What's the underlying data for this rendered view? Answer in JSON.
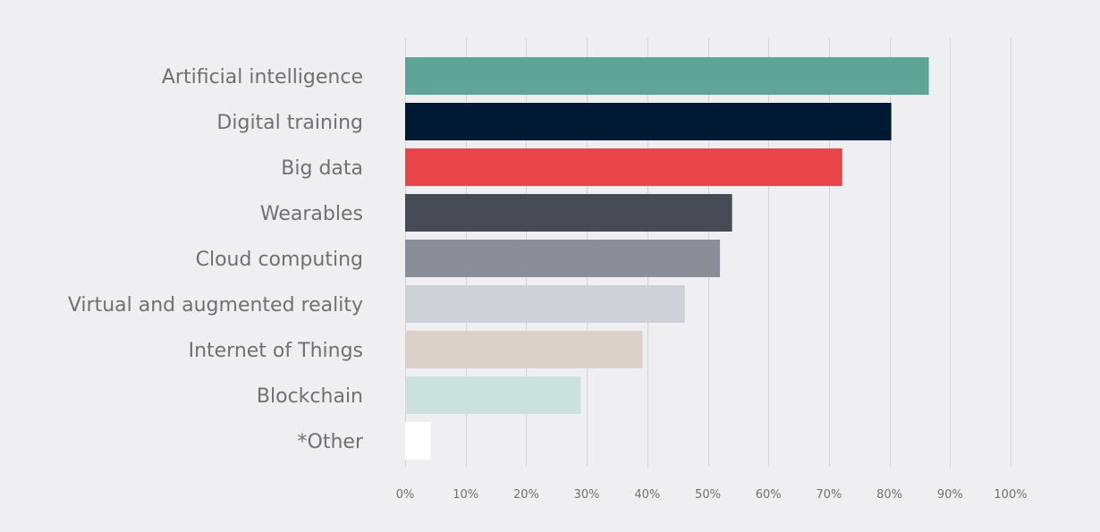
{
  "chart_data": {
    "type": "bar",
    "orientation": "horizontal",
    "title": "",
    "xlabel": "",
    "ylabel": "",
    "xlim": [
      0,
      100
    ],
    "x_ticks": [
      "0%",
      "10%",
      "20%",
      "30%",
      "40%",
      "50%",
      "60%",
      "70%",
      "80%",
      "90%",
      "100%"
    ],
    "grid": true,
    "categories": [
      "Artificial intelligence",
      "Digital training",
      "Big data",
      "Wearables",
      "Cloud computing",
      "Virtual and augmented reality",
      "Internet of Things",
      "Blockchain",
      "*Other"
    ],
    "values": [
      86.5,
      80.3,
      72.2,
      54.0,
      52.0,
      46.2,
      39.2,
      29.0,
      4.2
    ],
    "colors": [
      "#5ea597",
      "#001a33",
      "#e84548",
      "#474b55",
      "#8a8e97",
      "#cdd1d8",
      "#dcd1c8",
      "#cbe1dc",
      "#ffffff"
    ]
  }
}
